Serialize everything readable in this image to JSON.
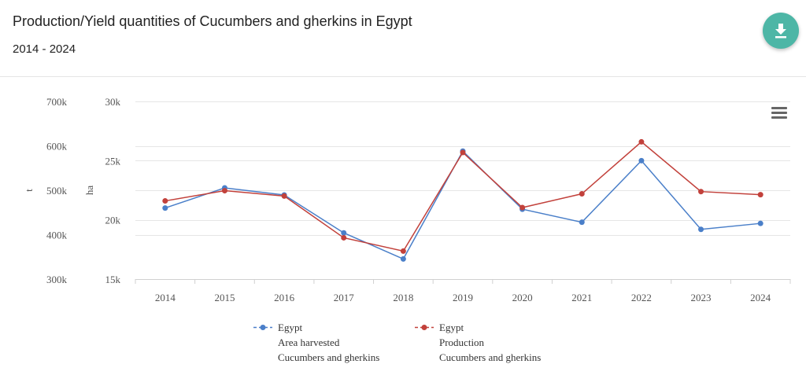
{
  "header": {
    "title": "Production/Yield quantities of Cucumbers and gherkins in Egypt",
    "subtitle": "2014 - 2024",
    "download_icon": "download-icon",
    "menu_icon": "hamburger-menu-icon"
  },
  "colors": {
    "area": "#4a7fc9",
    "production": "#c2413b",
    "grid": "#e6e6e6",
    "accent": "#4db6a6"
  },
  "chart_data": {
    "type": "line",
    "title": "Production/Yield quantities of Cucumbers and gherkins in Egypt",
    "subtitle": "2014 - 2024",
    "categories": [
      "2014",
      "2015",
      "2016",
      "2017",
      "2018",
      "2019",
      "2020",
      "2021",
      "2022",
      "2023",
      "2024"
    ],
    "axes": {
      "left_outer": {
        "label": "t",
        "ticks": [
          "700k",
          "600k",
          "500k",
          "400k",
          "300k"
        ],
        "range": [
          300000,
          700000
        ]
      },
      "left_inner": {
        "label": "ha",
        "ticks": [
          "30k",
          "25k",
          "20k",
          "15k"
        ],
        "range": [
          15000,
          30000
        ]
      }
    },
    "series": [
      {
        "name": "Egypt",
        "legend": [
          "Egypt",
          "Area harvested",
          "Cucumbers and gherkins"
        ],
        "axis": "ha",
        "values": [
          21000,
          22700,
          22100,
          18900,
          16700,
          25800,
          20900,
          19800,
          25000,
          19200,
          19700
        ]
      },
      {
        "name": "Egypt",
        "legend": [
          "Egypt",
          "Production",
          "Cucumbers and gherkins"
        ],
        "axis": "t",
        "values": [
          476000,
          499000,
          487000,
          393000,
          363000,
          585000,
          461000,
          492000,
          609000,
          497000,
          490000
        ]
      }
    ],
    "grid": true,
    "legend_position": "bottom"
  }
}
